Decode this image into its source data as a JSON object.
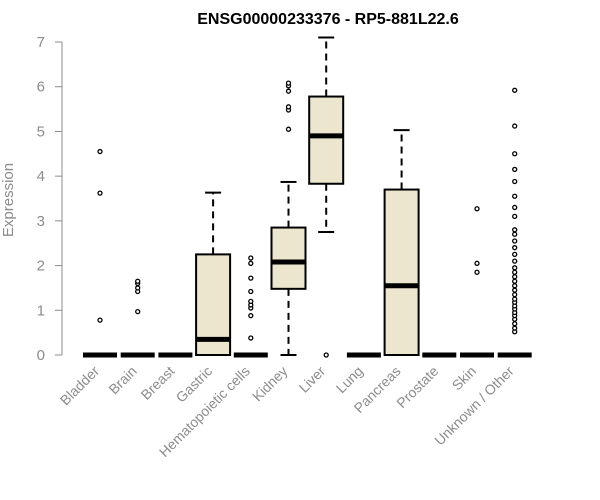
{
  "chart_data": {
    "type": "boxplot",
    "title": "ENSG00000233376 - RP5-881L22.6",
    "ylabel": "Expression",
    "xlabel": "",
    "ylim": [
      0,
      7
    ],
    "yticks": [
      0,
      1,
      2,
      3,
      4,
      5,
      6,
      7
    ],
    "grid": false,
    "box_color": "#ede6cf",
    "categories": [
      "Bladder",
      "Brain",
      "Breast",
      "Gastric",
      "Hematopoietic cells",
      "Kidney",
      "Liver",
      "Lung",
      "Pancreas",
      "Prostate",
      "Skin",
      "Unknown / Other"
    ],
    "boxes": [
      {
        "q1": 0,
        "median": 0,
        "q3": 0,
        "whisker_low": 0,
        "whisker_high": 0,
        "outliers": [
          0.78,
          3.62,
          4.55
        ]
      },
      {
        "q1": 0,
        "median": 0,
        "q3": 0,
        "whisker_low": 0,
        "whisker_high": 0,
        "outliers": [
          0.97,
          1.42,
          1.5,
          1.6,
          1.65
        ]
      },
      {
        "q1": 0,
        "median": 0,
        "q3": 0,
        "whisker_low": 0,
        "whisker_high": 0,
        "outliers": []
      },
      {
        "q1": 0,
        "median": 0.35,
        "q3": 2.25,
        "whisker_low": 0,
        "whisker_high": 3.63,
        "outliers": []
      },
      {
        "q1": 0,
        "median": 0,
        "q3": 0,
        "whisker_low": 0,
        "whisker_high": 0,
        "outliers": [
          0.38,
          0.88,
          1.05,
          1.12,
          1.2,
          1.42,
          1.72,
          2.05,
          2.17
        ]
      },
      {
        "q1": 1.48,
        "median": 2.08,
        "q3": 2.85,
        "whisker_low": 0,
        "whisker_high": 3.87,
        "outliers": [
          5.05,
          5.48,
          5.55,
          5.9,
          6.02,
          6.08
        ]
      },
      {
        "q1": 3.83,
        "median": 4.9,
        "q3": 5.78,
        "whisker_low": 2.75,
        "whisker_high": 7.1,
        "outliers": [
          0
        ]
      },
      {
        "q1": 0,
        "median": 0,
        "q3": 0,
        "whisker_low": 0,
        "whisker_high": 0,
        "outliers": []
      },
      {
        "q1": 0,
        "median": 1.55,
        "q3": 3.7,
        "whisker_low": 0,
        "whisker_high": 5.03,
        "outliers": []
      },
      {
        "q1": 0,
        "median": 0,
        "q3": 0,
        "whisker_low": 0,
        "whisker_high": 0,
        "outliers": []
      },
      {
        "q1": 0,
        "median": 0,
        "q3": 0,
        "whisker_low": 0,
        "whisker_high": 0,
        "outliers": [
          1.85,
          2.05,
          3.27
        ]
      },
      {
        "q1": 0,
        "median": 0,
        "q3": 0,
        "whisker_low": 0,
        "whisker_high": 0,
        "outliers": [
          0.52,
          0.6,
          0.7,
          0.8,
          0.88,
          0.95,
          1.03,
          1.1,
          1.18,
          1.25,
          1.35,
          1.45,
          1.55,
          1.65,
          1.75,
          1.85,
          1.95,
          2.1,
          2.25,
          2.4,
          2.55,
          2.7,
          2.8,
          3.1,
          3.3,
          3.55,
          3.88,
          4.15,
          4.5,
          5.12,
          5.92
        ]
      }
    ]
  }
}
